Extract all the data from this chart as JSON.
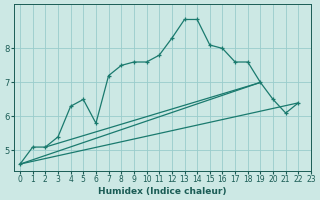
{
  "xlabel": "Humidex (Indice chaleur)",
  "background_color": "#cce8e4",
  "grid_color": "#99cccc",
  "line_color": "#1a7a6e",
  "x_values": [
    0,
    1,
    2,
    3,
    4,
    5,
    6,
    7,
    8,
    9,
    10,
    11,
    12,
    13,
    14,
    15,
    16,
    17,
    18,
    19,
    20,
    21,
    22
  ],
  "line_main": [
    4.6,
    5.1,
    5.1,
    5.4,
    6.3,
    6.5,
    5.8,
    7.2,
    7.5,
    7.6,
    7.6,
    7.8,
    8.3,
    8.85,
    8.85,
    8.1,
    8.0,
    7.6,
    7.6,
    7.0,
    6.5,
    6.1,
    6.4
  ],
  "fan_lines": [
    [
      [
        0,
        22
      ],
      [
        4.6,
        6.4
      ]
    ],
    [
      [
        0,
        19
      ],
      [
        4.6,
        7.0
      ]
    ],
    [
      [
        2,
        19
      ],
      [
        5.1,
        7.0
      ]
    ]
  ],
  "ylim": [
    4.4,
    9.3
  ],
  "yticks": [
    5,
    6,
    7,
    8
  ],
  "xlim": [
    -0.5,
    23
  ],
  "xticks": [
    0,
    1,
    2,
    3,
    4,
    5,
    6,
    7,
    8,
    9,
    10,
    11,
    12,
    13,
    14,
    15,
    16,
    17,
    18,
    19,
    20,
    21,
    22,
    23
  ],
  "xlabel_fontsize": 6.5,
  "tick_fontsize": 5.5,
  "ytick_fontsize": 6.0,
  "line_width": 0.9,
  "marker_size": 3.5
}
